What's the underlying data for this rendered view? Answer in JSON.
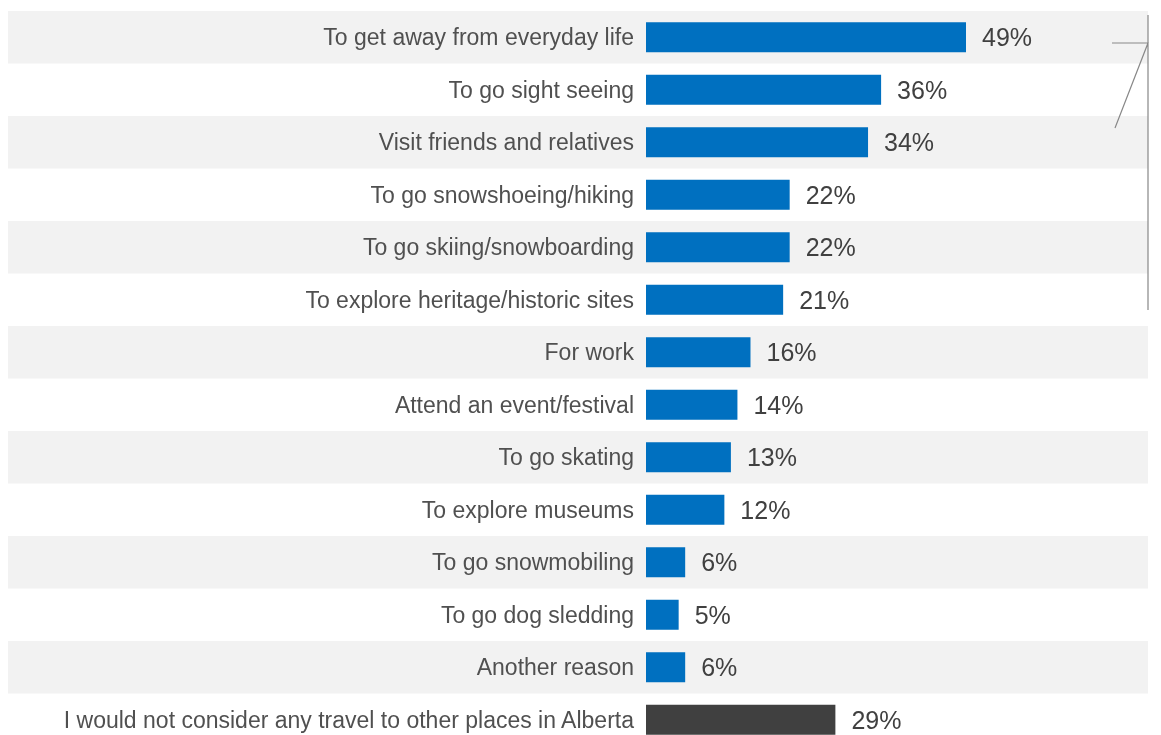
{
  "chart_data": {
    "type": "bar",
    "orientation": "horizontal",
    "categories": [
      "To get away from everyday life",
      "To go sight seeing",
      "Visit friends and relatives",
      "To go snowshoeing/hiking",
      "To go skiing/snowboarding",
      "To explore heritage/historic sites",
      "For work",
      "Attend an event/festival",
      "To go skating",
      "To explore museums",
      "To go snowmobiling",
      "To go dog sledding",
      "Another reason",
      "I would not consider any travel to other places in Alberta"
    ],
    "values": [
      49,
      36,
      34,
      22,
      22,
      21,
      16,
      14,
      13,
      12,
      6,
      5,
      6,
      29
    ],
    "colors": [
      "#0070c0",
      "#0070c0",
      "#0070c0",
      "#0070c0",
      "#0070c0",
      "#0070c0",
      "#0070c0",
      "#0070c0",
      "#0070c0",
      "#0070c0",
      "#0070c0",
      "#0070c0",
      "#0070c0",
      "#404040"
    ],
    "value_labels": [
      "49%",
      "36%",
      "34%",
      "22%",
      "22%",
      "21%",
      "16%",
      "14%",
      "13%",
      "12%",
      "6%",
      "5%",
      "6%",
      "29%"
    ]
  }
}
